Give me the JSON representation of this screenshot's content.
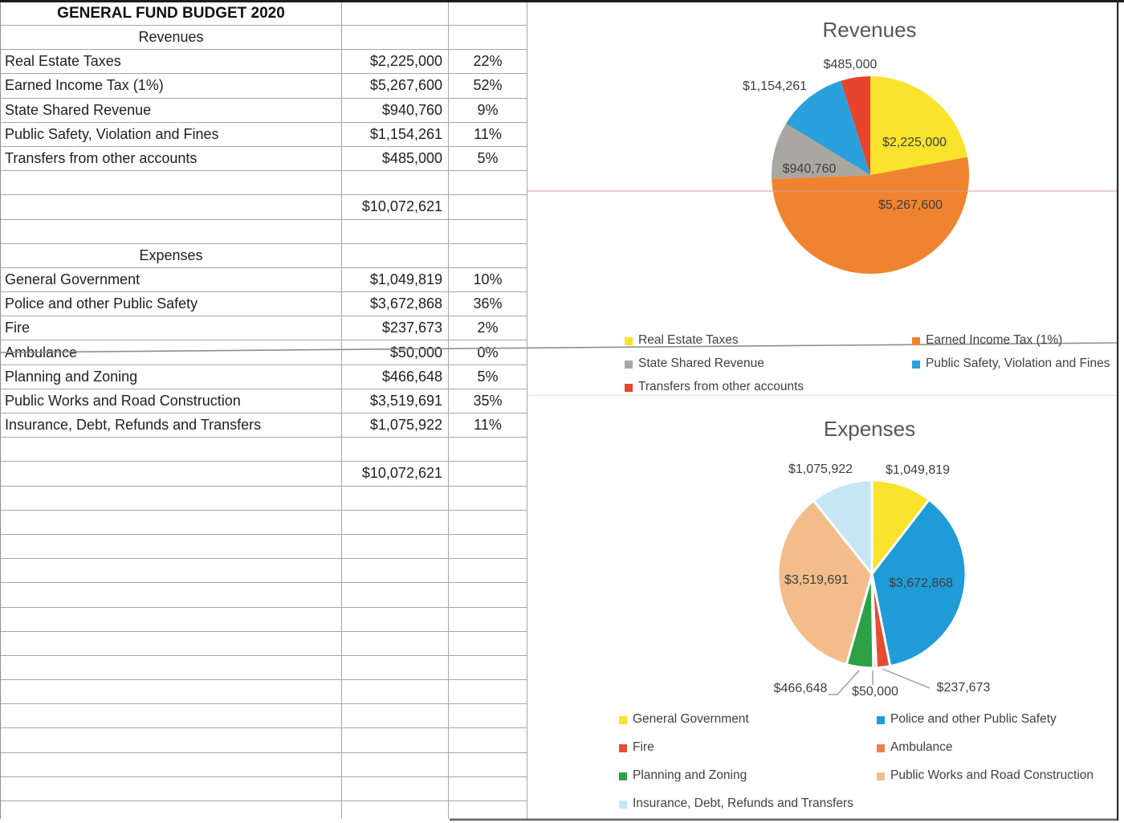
{
  "table": {
    "title": "GENERAL FUND BUDGET 2020",
    "rows": [
      {
        "label": "Revenues",
        "value": "",
        "pct": ""
      },
      {
        "label": "Real Estate Taxes",
        "value": "$2,225,000",
        "pct": "22%"
      },
      {
        "label": "Earned Income Tax (1%)",
        "value": "$5,267,600",
        "pct": "52%"
      },
      {
        "label": "State Shared Revenue",
        "value": "$940,760",
        "pct": "9%"
      },
      {
        "label": "Public Safety, Violation and Fines",
        "value": "$1,154,261",
        "pct": "11%"
      },
      {
        "label": "Transfers from other accounts",
        "value": "$485,000",
        "pct": "5%"
      },
      {
        "label": "",
        "value": "",
        "pct": ""
      },
      {
        "label": "",
        "value": "$10,072,621",
        "pct": ""
      },
      {
        "label": "",
        "value": "",
        "pct": ""
      },
      {
        "label": "Expenses",
        "value": "",
        "pct": ""
      },
      {
        "label": "General Government",
        "value": "$1,049,819",
        "pct": "10%"
      },
      {
        "label": "Police and other Public Safety",
        "value": "$3,672,868",
        "pct": "36%"
      },
      {
        "label": "Fire",
        "value": "$237,673",
        "pct": "2%"
      },
      {
        "label": "Ambulance",
        "value": "$50,000",
        "pct": "0%"
      },
      {
        "label": "Planning and Zoning",
        "value": "$466,648",
        "pct": "5%"
      },
      {
        "label": "Public Works and Road Construction",
        "value": "$3,519,691",
        "pct": "35%"
      },
      {
        "label": "Insurance, Debt, Refunds and Transfers",
        "value": "$1,075,922",
        "pct": "11%"
      },
      {
        "label": "",
        "value": "",
        "pct": ""
      },
      {
        "label": "",
        "value": "$10,072,621",
        "pct": ""
      }
    ]
  },
  "chart_data": [
    {
      "type": "pie",
      "title": "Revenues",
      "categories": [
        "Real Estate Taxes",
        "Earned Income Tax (1%)",
        "State Shared Revenue",
        "Public Safety, Violation and Fines",
        "Transfers from other accounts"
      ],
      "values": [
        2225000,
        5267600,
        940760,
        1154261,
        485000
      ],
      "labels": [
        "$2,225,000",
        "$5,267,600",
        "$940,760",
        "$1,154,261",
        "$485,000"
      ],
      "colors": [
        "#f9e32c",
        "#f0832f",
        "#aaa7a1",
        "#2aa0dc",
        "#e8432c"
      ],
      "total": 10072621,
      "legend_position": "bottom"
    },
    {
      "type": "pie",
      "title": "Expenses",
      "categories": [
        "General Government",
        "Police and other Public Safety",
        "Fire",
        "Ambulance",
        "Planning and Zoning",
        "Public Works and Road Construction",
        "Insurance, Debt, Refunds and Transfers"
      ],
      "values": [
        1049819,
        3672868,
        237673,
        50000,
        466648,
        3519691,
        1075922
      ],
      "labels": [
        "$1,049,819",
        "$3,672,868",
        "$237,673",
        "$50,000",
        "$466,648",
        "$3,519,691",
        "$1,075,922"
      ],
      "colors": [
        "#f9e32c",
        "#1f9cd7",
        "#e74c33",
        "#ee7d4f",
        "#2ea147",
        "#f2bd8b",
        "#c5e6f2"
      ],
      "total": 10072621,
      "legend_position": "bottom"
    }
  ]
}
